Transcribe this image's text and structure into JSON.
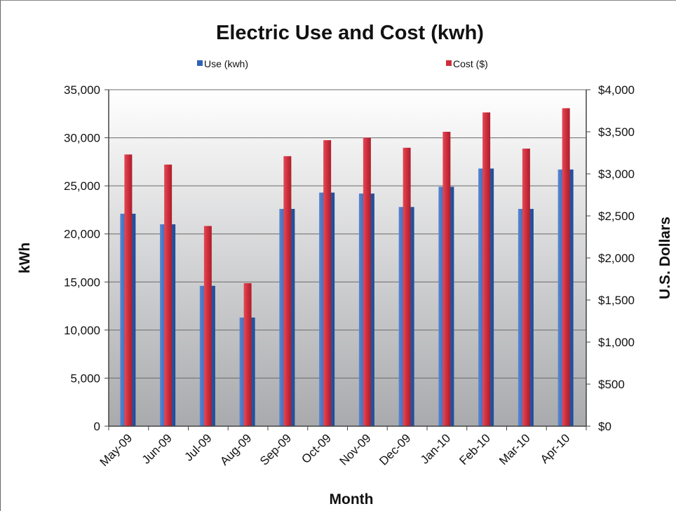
{
  "chart_data": {
    "type": "bar",
    "title": "Electric Use and Cost (kwh)",
    "xlabel": "Month",
    "ylabel": "kWh",
    "y2label": "U.S. Dollars",
    "categories": [
      "May-09",
      "Jun-09",
      "Jul-09",
      "Aug-09",
      "Sep-09",
      "Oct-09",
      "Nov-09",
      "Dec-09",
      "Jan-10",
      "Feb-10",
      "Mar-10",
      "Apr-10"
    ],
    "series": [
      {
        "name": "Use (kwh)",
        "axis": "left",
        "color": "#2e62b8",
        "values": [
          22100,
          21000,
          14600,
          11300,
          22600,
          24300,
          24200,
          22800,
          24900,
          26800,
          22600,
          26700
        ]
      },
      {
        "name": "Cost ($)",
        "axis": "right",
        "color": "#cf2d3c",
        "values": [
          3230,
          3110,
          2380,
          1700,
          3210,
          3400,
          3430,
          3310,
          3500,
          3730,
          3300,
          3780
        ]
      }
    ],
    "ylim": [
      0,
      35000
    ],
    "y2lim": [
      0,
      4000
    ],
    "yticks": [
      0,
      5000,
      10000,
      15000,
      20000,
      25000,
      30000,
      35000
    ],
    "yticklabels": [
      "0",
      "5,000",
      "10,000",
      "15,000",
      "20,000",
      "25,000",
      "30,000",
      "35,000"
    ],
    "y2ticks": [
      0,
      500,
      1000,
      1500,
      2000,
      2500,
      3000,
      3500,
      4000
    ],
    "y2ticklabels": [
      "$0",
      "$500",
      "$1,000",
      "$1,500",
      "$2,000",
      "$2,500",
      "$3,000",
      "$3,500",
      "$4,000"
    ],
    "grid": true,
    "legend_position": "top"
  }
}
